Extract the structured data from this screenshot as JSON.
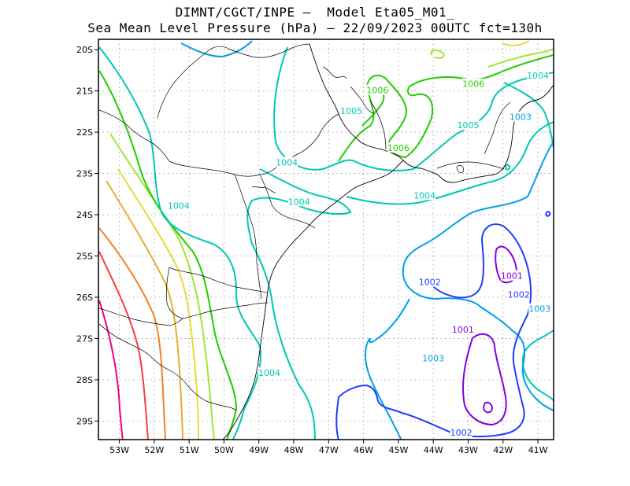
{
  "title_line1": "DIMNT/CGCT/INPE –  Model Eta05_M01_",
  "title_line2": "Sea Mean Level Pressure (hPa) – 22/09/2023 00UTC fct=130h",
  "lon_ticks": [
    "53W",
    "52W",
    "51W",
    "50W",
    "49W",
    "48W",
    "47W",
    "46W",
    "45W",
    "44W",
    "43W",
    "42W",
    "41W"
  ],
  "lat_ticks": [
    "20S",
    "21S",
    "22S",
    "23S",
    "24S",
    "25S",
    "26S",
    "27S",
    "28S",
    "29S"
  ],
  "contour_labels": [
    {
      "text": "1006",
      "color": "#22cc00",
      "lon": -45.6,
      "lat": -21.0
    },
    {
      "text": "1006",
      "color": "#22cc00",
      "lon": -42.85,
      "lat": -20.85
    },
    {
      "text": "1006",
      "color": "#22cc00",
      "lon": -45.0,
      "lat": -22.4
    },
    {
      "text": "1005",
      "color": "#00c8b4",
      "lon": -46.35,
      "lat": -21.5
    },
    {
      "text": "1005",
      "color": "#00c8b4",
      "lon": -43.0,
      "lat": -21.85
    },
    {
      "text": "1004",
      "color": "#00c8b4",
      "lon": -48.2,
      "lat": -22.75
    },
    {
      "text": "1004",
      "color": "#00c8b4",
      "lon": -51.3,
      "lat": -23.8
    },
    {
      "text": "1004",
      "color": "#00c8b4",
      "lon": -47.85,
      "lat": -23.7
    },
    {
      "text": "1004",
      "color": "#00c8b4",
      "lon": -44.25,
      "lat": -23.55
    },
    {
      "text": "1004",
      "color": "#00c8b4",
      "lon": -41.0,
      "lat": -20.65
    },
    {
      "text": "1004",
      "color": "#00c8b4",
      "lon": -48.7,
      "lat": -27.85
    },
    {
      "text": "1003",
      "color": "#00a0e6",
      "lon": -41.5,
      "lat": -21.65
    },
    {
      "text": "1003",
      "color": "#00a0e6",
      "lon": -40.95,
      "lat": -26.3
    },
    {
      "text": "1003",
      "color": "#00a0e6",
      "lon": -44.0,
      "lat": -27.5
    },
    {
      "text": "1002",
      "color": "#1e3cff",
      "lon": -44.1,
      "lat": -25.65
    },
    {
      "text": "1002",
      "color": "#1e3cff",
      "lon": -41.55,
      "lat": -25.95
    },
    {
      "text": "1002",
      "color": "#1e3cff",
      "lon": -43.2,
      "lat": -29.3
    },
    {
      "text": "1001",
      "color": "#8200dc",
      "lon": -41.75,
      "lat": -25.5
    },
    {
      "text": "1001",
      "color": "#8200dc",
      "lon": -43.15,
      "lat": -26.8
    }
  ],
  "colors": {
    "c1001": "#8200dc",
    "c1002": "#1e3cff",
    "c1003": "#00a0e6",
    "c1004": "#00c8b4",
    "c1005": "#00c8b4",
    "c1006": "#22cc00",
    "c1007": "#a0e632",
    "c1008": "#e6dc32",
    "c1009": "#e6af2d",
    "c1010": "#f08228",
    "c1011": "#fa3c3c",
    "c1012": "#f00082",
    "grid": "#999999",
    "coast": "#000000"
  }
}
